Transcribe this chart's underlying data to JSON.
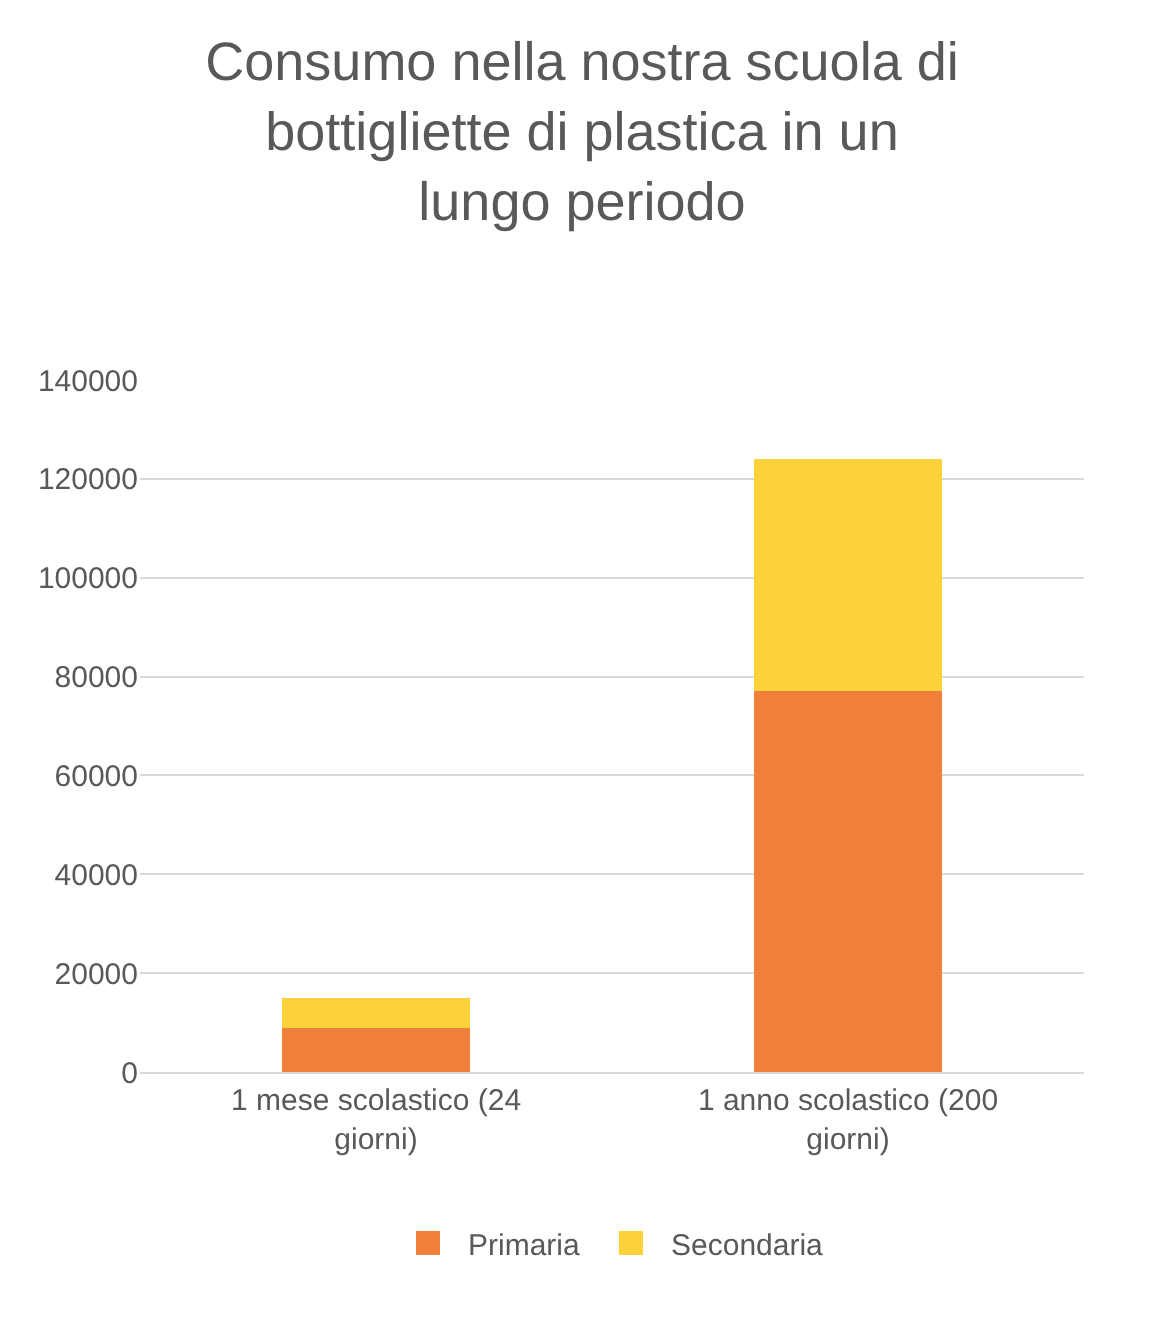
{
  "chart_data": {
    "type": "bar",
    "title": "Consumo nella nostra scuola di bottigliette di plastica in un lungo periodo",
    "categories": [
      "1 mese scolastico (24 giorni)",
      "1 anno scolastico (200 giorni)"
    ],
    "series": [
      {
        "name": "Primaria",
        "color": "#f07f3c",
        "values": [
          9000,
          77000
        ]
      },
      {
        "name": "Secondaria",
        "color": "#fdd13a",
        "values": [
          6000,
          47000
        ]
      }
    ],
    "stacked": true,
    "ylim": [
      0,
      140000
    ],
    "yticks": [
      0,
      20000,
      40000,
      60000,
      80000,
      100000,
      120000,
      140000
    ],
    "grid": "y",
    "legend": "bottom"
  }
}
